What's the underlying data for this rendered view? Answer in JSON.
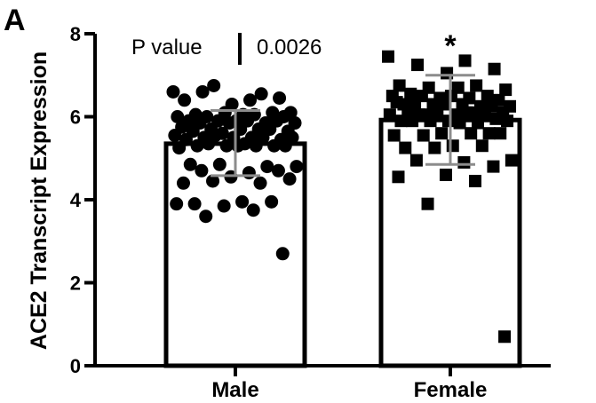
{
  "panel_label": "A",
  "annotation": {
    "p_label": "P value",
    "p_value": "0.0026",
    "significance_marker": "*"
  },
  "chart_data": {
    "type": "bar",
    "ylabel": "ACE2 Transcript Expression",
    "xlabel": "",
    "ylim": [
      0,
      8
    ],
    "yticks": [
      0,
      2,
      4,
      6,
      8
    ],
    "categories": [
      "Male",
      "Female"
    ],
    "bars": [
      {
        "category": "Male",
        "mean": 5.35,
        "sd_low": 4.58,
        "sd_high": 6.15,
        "marker": "circle",
        "points": [
          6.6,
          6.4,
          6.6,
          6.45,
          6.3,
          6.4,
          6.55,
          6.75,
          6.1,
          6.05,
          6.05,
          6.1,
          6.1,
          6.0,
          6.05,
          6.0,
          6.0,
          5.9,
          5.9,
          5.85,
          5.9,
          5.85,
          5.9,
          5.85,
          5.9,
          5.85,
          5.75,
          5.7,
          5.7,
          5.65,
          5.7,
          5.65,
          5.7,
          5.6,
          5.55,
          5.5,
          5.5,
          5.45,
          5.5,
          5.45,
          5.5,
          5.55,
          5.5,
          5.35,
          5.3,
          5.3,
          5.3,
          5.25,
          5.3,
          5.35,
          5.3,
          5.3,
          4.85,
          4.8,
          4.85,
          4.8,
          4.65,
          4.7,
          4.7,
          4.55,
          4.4,
          4.4,
          4.45,
          4.5,
          3.95,
          3.9,
          3.95,
          3.85,
          3.9,
          3.75,
          3.6,
          2.7
        ]
      },
      {
        "category": "Female",
        "mean": 5.92,
        "sd_low": 4.85,
        "sd_high": 7.0,
        "marker": "square",
        "points": [
          7.45,
          7.35,
          7.25,
          7.15,
          7.05,
          6.75,
          6.75,
          6.7,
          6.65,
          6.7,
          6.55,
          6.5,
          6.45,
          6.5,
          6.45,
          6.5,
          6.4,
          6.5,
          6.3,
          6.25,
          6.3,
          6.25,
          6.3,
          6.3,
          6.25,
          6.3,
          6.35,
          6.1,
          6.05,
          6.1,
          6.05,
          6.1,
          6.05,
          6.1,
          6.05,
          6.1,
          6.05,
          5.95,
          5.9,
          5.9,
          5.85,
          5.9,
          5.9,
          5.85,
          5.9,
          5.6,
          5.6,
          5.55,
          5.6,
          5.55,
          5.6,
          5.3,
          5.25,
          5.3,
          5.25,
          4.95,
          4.9,
          4.95,
          4.8,
          4.6,
          4.55,
          4.45,
          3.9,
          0.7
        ]
      }
    ],
    "grid": false,
    "legend": "none"
  },
  "colors": {
    "axis": "#000000",
    "bar_fill": "#ffffff",
    "points": "#000000",
    "error_bars": "#8c8c8c"
  }
}
